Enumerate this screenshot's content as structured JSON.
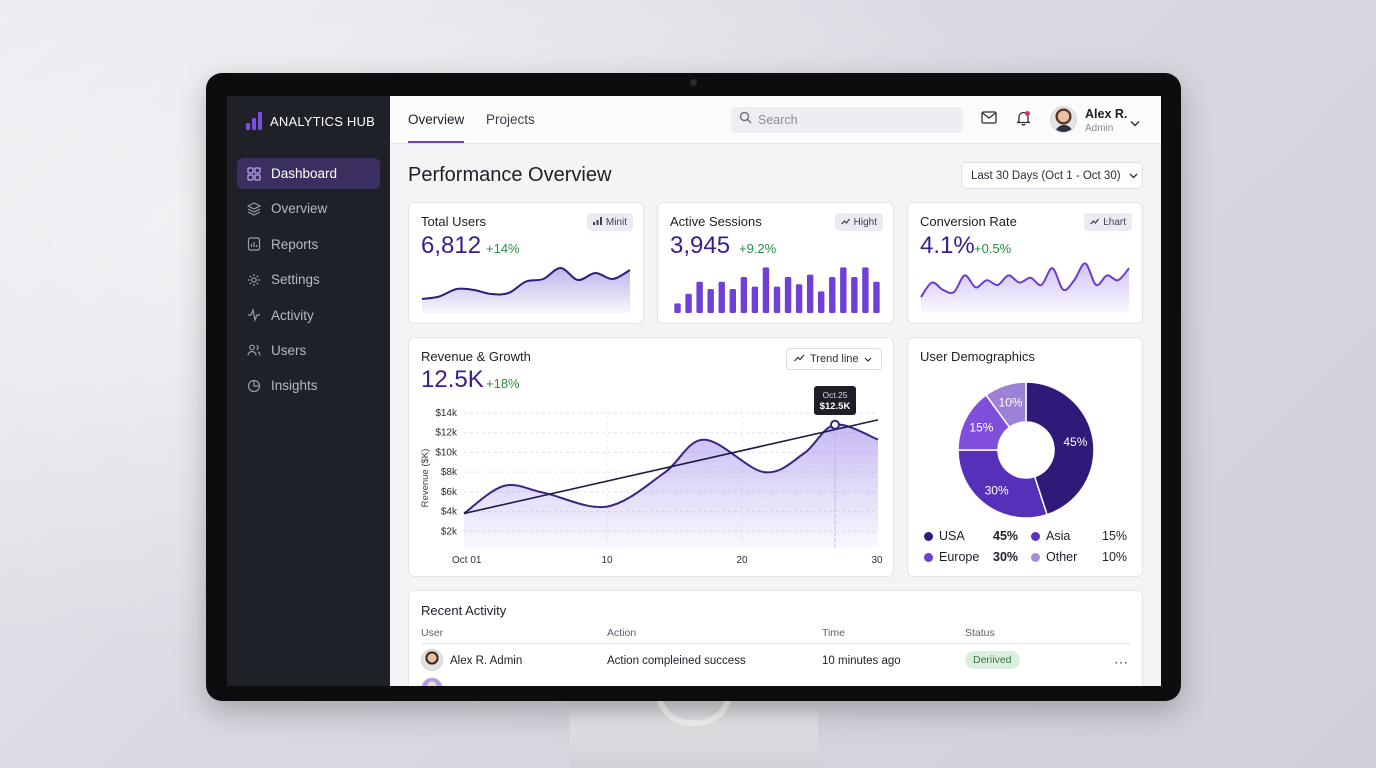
{
  "sidebar": {
    "brand": "ANALYTICS HUB",
    "items": [
      {
        "label": "Dashboard",
        "icon": "grid-icon",
        "active": true
      },
      {
        "label": "Overview",
        "icon": "layers-icon"
      },
      {
        "label": "Reports",
        "icon": "report-icon"
      },
      {
        "label": "Settings",
        "icon": "gear-icon"
      },
      {
        "label": "Activity",
        "icon": "pulse-icon"
      },
      {
        "label": "Users",
        "icon": "users-icon"
      },
      {
        "label": "Insights",
        "icon": "pie-icon"
      }
    ]
  },
  "header": {
    "tabs": [
      "Overview",
      "Projects"
    ],
    "search_placeholder": "Search",
    "user": {
      "name": "Alex R.",
      "role": "Admin"
    }
  },
  "main": {
    "title": "Performance Overview",
    "date_range": "Last 30 Days (Oct 1 - Oct 30)"
  },
  "kpis": [
    {
      "title": "Total Users",
      "value": "6,812",
      "delta": "+14%",
      "chip": "Minit",
      "chip_icon": "bars-icon"
    },
    {
      "title": "Active Sessions",
      "value": "3,945",
      "delta": "+9.2%",
      "chip": "Hight",
      "chip_icon": "trend-icon"
    },
    {
      "title": "Conversion Rate",
      "value": "4.1%",
      "delta": "+0.5%",
      "chip": "Ŀhart",
      "chip_icon": "trend-icon"
    }
  ],
  "revenue": {
    "title": "Revenue & Growth",
    "value": "12.5K",
    "delta": "+18%",
    "dropdown": "Trend line",
    "tooltip_date": "Oct.25",
    "tooltip_value": "$12.5K"
  },
  "demographics": {
    "title": "User Demographics",
    "legend": [
      {
        "label": "USA",
        "value": "45%"
      },
      {
        "label": "Asia",
        "value": "15%"
      },
      {
        "label": "Europe",
        "value": "30%"
      },
      {
        "label": "Other",
        "value": "10%"
      }
    ]
  },
  "activity": {
    "title": "Recent Activity",
    "columns": [
      "User",
      "Action",
      "Time",
      "Status"
    ],
    "rows": [
      {
        "user": "Alex R. Admin",
        "action": "Action compleined success",
        "time": "10 minutes ago",
        "status": "Deriived"
      }
    ]
  },
  "colors": {
    "accent": "#6d3ed6",
    "accent_dark": "#3a1d8c",
    "positive": "#25903f",
    "sidebar_bg": "#1f2129"
  },
  "chart_data": [
    {
      "type": "line",
      "title": "Revenue & Growth",
      "ylabel": "Revenue ($K)",
      "x": [
        "Oct 01",
        "Oct 04",
        "Oct 06",
        "Oct 10",
        "Oct 13",
        "Oct 16",
        "Oct 20",
        "Oct 23",
        "Oct 25",
        "Oct 30"
      ],
      "x_ticks": [
        "Oct 01",
        "10",
        "20",
        "30"
      ],
      "y_ticks": [
        "$2k",
        "$4k",
        "$6k",
        "$8k",
        "$10k",
        "$12k",
        "$14k"
      ],
      "ylim": [
        0,
        14
      ],
      "series": [
        {
          "values": [
            3.5,
            6.3,
            5.6,
            4.2,
            7.6,
            11.0,
            7.7,
            9.6,
            12.5,
            11.0
          ]
        }
      ],
      "trend_line": {
        "start": 3.5,
        "end": 13.0
      },
      "grid": true
    },
    {
      "type": "pie",
      "title": "User Demographics",
      "categories": [
        "USA",
        "Europe",
        "Asia",
        "Other"
      ],
      "values": [
        45,
        30,
        15,
        10
      ],
      "colors": [
        "#2f1a7a",
        "#5630b8",
        "#7f4fdb",
        "#9c82d6"
      ]
    },
    {
      "type": "area",
      "title": "Total Users",
      "values": [
        0.2,
        0.25,
        0.4,
        0.38,
        0.3,
        0.32,
        0.55,
        0.6,
        0.82,
        0.58,
        0.72,
        0.6,
        0.78
      ],
      "ylim": [
        0,
        1
      ]
    },
    {
      "type": "bar",
      "title": "Active Sessions",
      "values": [
        0.2,
        0.4,
        0.65,
        0.5,
        0.65,
        0.5,
        0.75,
        0.55,
        0.95,
        0.55,
        0.75,
        0.6,
        0.8,
        0.45,
        0.75,
        0.95,
        0.75,
        0.95,
        0.65
      ],
      "ylim": [
        0,
        1
      ]
    },
    {
      "type": "area",
      "title": "Conversion Rate",
      "values": [
        0.25,
        0.55,
        0.4,
        0.35,
        0.7,
        0.45,
        0.6,
        0.5,
        0.7,
        0.55,
        0.65,
        0.5,
        0.85,
        0.4,
        0.6,
        0.95,
        0.5,
        0.7,
        0.6,
        0.85
      ],
      "ylim": [
        0,
        1
      ]
    }
  ]
}
